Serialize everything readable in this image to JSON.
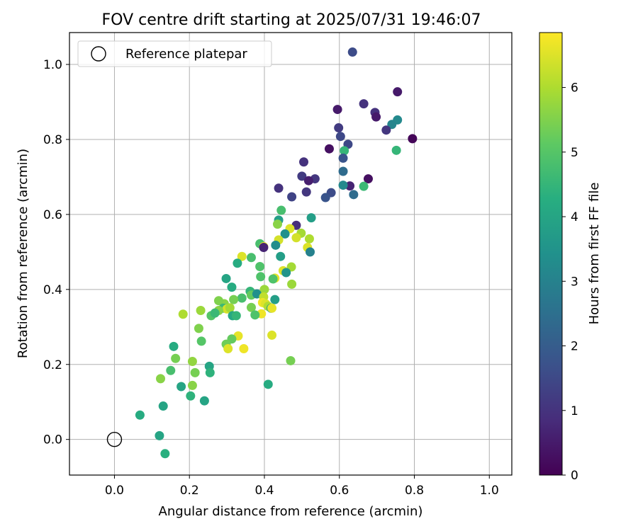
{
  "chart_data": {
    "type": "scatter",
    "title": "FOV centre drift starting at 2025/07/31 19:46:07",
    "xlabel": "Angular distance from reference (arcmin)",
    "ylabel": "Rotation from reference (arcmin)",
    "xlim": [
      -0.12,
      1.06
    ],
    "ylim": [
      -0.095,
      1.085
    ],
    "xticks": [
      "0.0",
      "0.2",
      "0.4",
      "0.6",
      "0.8",
      "1.0"
    ],
    "yticks": [
      "0.0",
      "0.2",
      "0.4",
      "0.6",
      "0.8",
      "1.0"
    ],
    "grid": true,
    "legend": {
      "placement": "upper-left",
      "entries": [
        {
          "label": "Reference platepar",
          "marker": "open-circle",
          "color": "#000000"
        }
      ]
    },
    "reference_point": {
      "x": 0.0,
      "y": 0.0
    },
    "colorbar": {
      "label": "Hours from first FF file",
      "range": [
        0,
        6.85
      ],
      "ticks": [
        "0",
        "1",
        "2",
        "3",
        "4",
        "5",
        "6"
      ],
      "colormap": "viridis"
    },
    "series": [
      {
        "columns": [
          "x",
          "y",
          "hours"
        ],
        "points": [
          [
            0.635,
            1.033,
            1.6
          ],
          [
            0.755,
            0.927,
            0.5
          ],
          [
            0.595,
            0.88,
            0.5
          ],
          [
            0.665,
            0.895,
            1.0
          ],
          [
            0.695,
            0.872,
            1.0
          ],
          [
            0.698,
            0.86,
            0.5
          ],
          [
            0.755,
            0.852,
            3.2
          ],
          [
            0.598,
            0.831,
            1.2
          ],
          [
            0.74,
            0.84,
            3.1
          ],
          [
            0.725,
            0.825,
            1.1
          ],
          [
            0.795,
            0.802,
            0.1
          ],
          [
            0.603,
            0.808,
            1.5
          ],
          [
            0.623,
            0.787,
            1.5
          ],
          [
            0.573,
            0.775,
            0.3
          ],
          [
            0.613,
            0.77,
            4.5
          ],
          [
            0.752,
            0.771,
            4.5
          ],
          [
            0.61,
            0.75,
            1.8
          ],
          [
            0.505,
            0.74,
            1.0
          ],
          [
            0.61,
            0.715,
            2.4
          ],
          [
            0.5,
            0.702,
            1.2
          ],
          [
            0.535,
            0.695,
            1.1
          ],
          [
            0.677,
            0.695,
            0.3
          ],
          [
            0.518,
            0.69,
            0.6
          ],
          [
            0.628,
            0.676,
            0.7
          ],
          [
            0.61,
            0.678,
            3.2
          ],
          [
            0.665,
            0.675,
            4.6
          ],
          [
            0.438,
            0.67,
            1.0
          ],
          [
            0.512,
            0.66,
            1.1
          ],
          [
            0.578,
            0.658,
            1.6
          ],
          [
            0.638,
            0.653,
            2.4
          ],
          [
            0.473,
            0.647,
            1.4
          ],
          [
            0.563,
            0.645,
            1.8
          ],
          [
            0.445,
            0.611,
            4.8
          ],
          [
            0.525,
            0.591,
            3.8
          ],
          [
            0.438,
            0.585,
            3.8
          ],
          [
            0.435,
            0.574,
            5.6
          ],
          [
            0.485,
            0.571,
            0.9
          ],
          [
            0.468,
            0.562,
            6.5
          ],
          [
            0.455,
            0.548,
            3.4
          ],
          [
            0.498,
            0.55,
            5.9
          ],
          [
            0.485,
            0.538,
            6.4
          ],
          [
            0.52,
            0.535,
            6.0
          ],
          [
            0.438,
            0.532,
            6.4
          ],
          [
            0.43,
            0.518,
            3.3
          ],
          [
            0.388,
            0.522,
            4.8
          ],
          [
            0.398,
            0.514,
            6.6
          ],
          [
            0.398,
            0.512,
            0.7
          ],
          [
            0.515,
            0.512,
            6.5
          ],
          [
            0.522,
            0.5,
            3.0
          ],
          [
            0.443,
            0.488,
            3.8
          ],
          [
            0.34,
            0.488,
            6.5
          ],
          [
            0.365,
            0.485,
            4.8
          ],
          [
            0.328,
            0.47,
            4.2
          ],
          [
            0.472,
            0.46,
            5.9
          ],
          [
            0.388,
            0.461,
            4.9
          ],
          [
            0.45,
            0.45,
            6.5
          ],
          [
            0.458,
            0.445,
            3.5
          ],
          [
            0.39,
            0.434,
            4.9
          ],
          [
            0.298,
            0.429,
            4.0
          ],
          [
            0.428,
            0.43,
            6.6
          ],
          [
            0.423,
            0.428,
            4.9
          ],
          [
            0.473,
            0.414,
            5.8
          ],
          [
            0.313,
            0.406,
            4.2
          ],
          [
            0.4,
            0.4,
            5.8
          ],
          [
            0.362,
            0.395,
            4.5
          ],
          [
            0.365,
            0.385,
            5.2
          ],
          [
            0.38,
            0.388,
            3.4
          ],
          [
            0.398,
            0.38,
            6.2
          ],
          [
            0.34,
            0.377,
            4.8
          ],
          [
            0.318,
            0.373,
            5.4
          ],
          [
            0.428,
            0.373,
            3.8
          ],
          [
            0.293,
            0.362,
            5.6
          ],
          [
            0.395,
            0.365,
            6.7
          ],
          [
            0.403,
            0.362,
            6.5
          ],
          [
            0.278,
            0.37,
            5.5
          ],
          [
            0.41,
            0.355,
            6.0
          ],
          [
            0.418,
            0.35,
            3.8
          ],
          [
            0.29,
            0.35,
            4.6
          ],
          [
            0.3,
            0.348,
            6.4
          ],
          [
            0.308,
            0.351,
            5.9
          ],
          [
            0.365,
            0.352,
            5.4
          ],
          [
            0.42,
            0.35,
            6.6
          ],
          [
            0.23,
            0.344,
            5.8
          ],
          [
            0.278,
            0.344,
            5.6
          ],
          [
            0.183,
            0.334,
            6.0
          ],
          [
            0.392,
            0.335,
            6.7
          ],
          [
            0.258,
            0.33,
            5.0
          ],
          [
            0.315,
            0.33,
            4.1
          ],
          [
            0.325,
            0.33,
            4.5
          ],
          [
            0.375,
            0.332,
            4.9
          ],
          [
            0.268,
            0.337,
            4.6
          ],
          [
            0.33,
            0.276,
            6.6
          ],
          [
            0.42,
            0.278,
            6.5
          ],
          [
            0.225,
            0.296,
            5.5
          ],
          [
            0.313,
            0.268,
            5.2
          ],
          [
            0.232,
            0.262,
            5.0
          ],
          [
            0.298,
            0.254,
            5.3
          ],
          [
            0.303,
            0.242,
            6.5
          ],
          [
            0.345,
            0.242,
            6.7
          ],
          [
            0.158,
            0.248,
            4.2
          ],
          [
            0.163,
            0.216,
            5.4
          ],
          [
            0.208,
            0.208,
            5.7
          ],
          [
            0.47,
            0.21,
            5.4
          ],
          [
            0.253,
            0.195,
            4.0
          ],
          [
            0.15,
            0.184,
            4.8
          ],
          [
            0.255,
            0.178,
            4.4
          ],
          [
            0.215,
            0.178,
            5.4
          ],
          [
            0.123,
            0.162,
            5.6
          ],
          [
            0.41,
            0.147,
            4.2
          ],
          [
            0.208,
            0.144,
            5.6
          ],
          [
            0.178,
            0.141,
            4.0
          ],
          [
            0.203,
            0.116,
            4.4
          ],
          [
            0.24,
            0.103,
            4.0
          ],
          [
            0.13,
            0.089,
            4.0
          ],
          [
            0.068,
            0.065,
            4.2
          ],
          [
            0.12,
            0.01,
            4.0
          ],
          [
            0.135,
            -0.038,
            4.3
          ]
        ]
      }
    ]
  }
}
